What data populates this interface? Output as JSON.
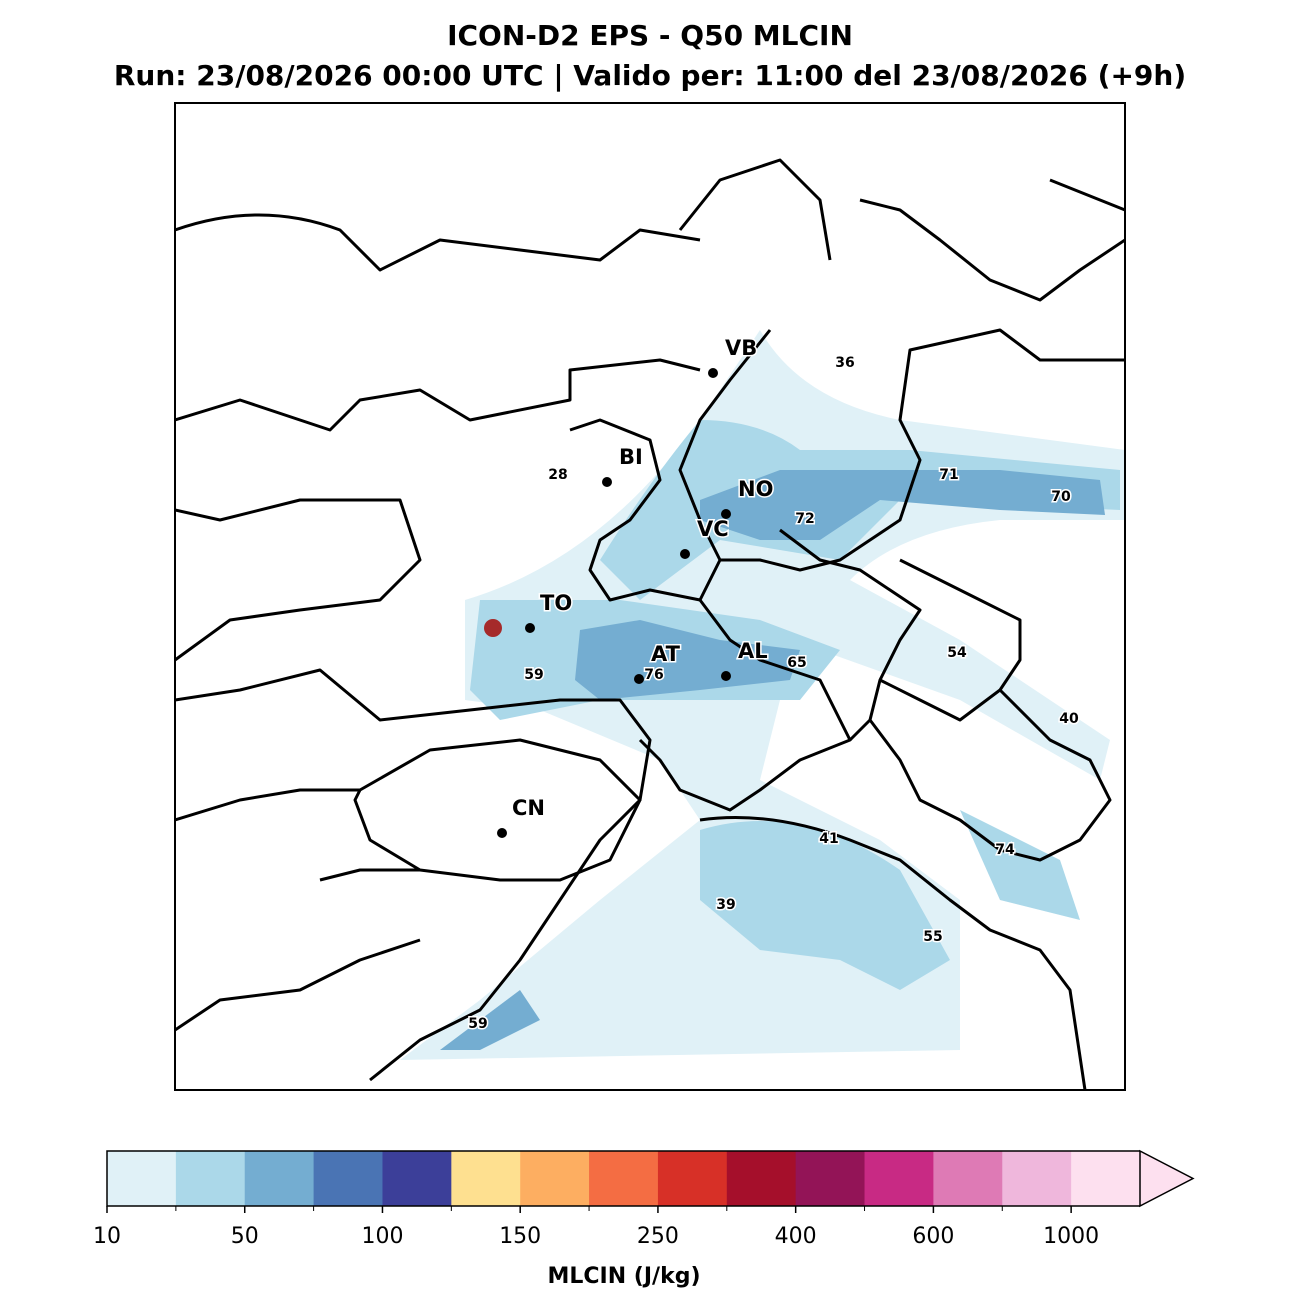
{
  "chart_data": {
    "type": "map",
    "title": "ICON-D2 EPS - Q50 MLCIN",
    "subtitle": "Run: 23/08/2026 00:00 UTC | Valido per: 11:00 del 23/08/2026 (+9h)",
    "cities": [
      "VB",
      "BI",
      "NO",
      "VC",
      "TO",
      "AT",
      "AL",
      "CN"
    ],
    "field_labels": [
      36,
      28,
      71,
      70,
      72,
      59,
      76,
      65,
      54,
      40,
      41,
      74,
      39,
      55,
      59
    ],
    "colorbar": {
      "label": "MLCIN (J/kg)",
      "ticks": [
        10,
        50,
        100,
        150,
        250,
        400,
        600,
        1000
      ],
      "colors": [
        "#e0f1f7",
        "#abd8e9",
        "#74add1",
        "#4a74b4",
        "#3c3f99",
        "#fee090",
        "#fdae61",
        "#f46d43",
        "#d73027",
        "#a50f2b",
        "#931457",
        "#c82a84",
        "#de7ab5",
        "#efb7dc",
        "#fde0ef"
      ],
      "extend": "max"
    }
  }
}
